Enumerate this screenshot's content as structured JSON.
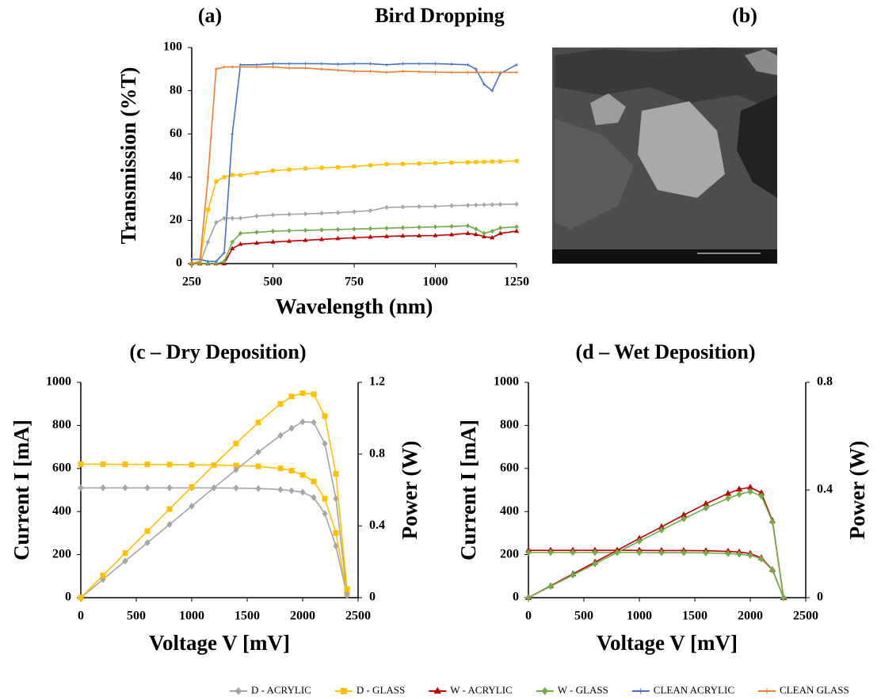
{
  "image_panel": {
    "label": "(b)"
  },
  "chart_data": [
    {
      "type": "line",
      "panel_label": "(a)",
      "title": "Bird Dropping",
      "x_label": "Wavelength (nm)",
      "y_label": "Transmission (%T)",
      "xlim": [
        250,
        1250
      ],
      "xticks": [
        250,
        500,
        750,
        1000,
        1250
      ],
      "ylim": [
        0,
        100
      ],
      "yticks": [
        0,
        20,
        40,
        60,
        80,
        100
      ],
      "grid": false,
      "legend": "bottom",
      "x": [
        250,
        275,
        300,
        325,
        350,
        375,
        400,
        450,
        500,
        550,
        600,
        650,
        700,
        750,
        800,
        850,
        900,
        950,
        1000,
        1050,
        1100,
        1125,
        1150,
        1175,
        1200,
        1250
      ],
      "series": [
        {
          "name": "D - ACRYLIC",
          "color": "#a5a5a5",
          "marker": "diamond",
          "values": [
            0,
            0,
            10,
            19,
            21,
            21,
            21,
            22,
            22.5,
            22.8,
            23,
            23.3,
            23.6,
            24,
            24.5,
            26,
            26.2,
            26.4,
            26.5,
            26.8,
            27,
            27.1,
            27.2,
            27.3,
            27.4,
            27.5
          ]
        },
        {
          "name": "D - GLASS",
          "color": "#ffc000",
          "marker": "square",
          "values": [
            0,
            0,
            25,
            38,
            40,
            41,
            41,
            42,
            43,
            43.5,
            44,
            44.3,
            44.6,
            45,
            45.5,
            46,
            46.1,
            46.3,
            46.5,
            46.7,
            46.9,
            47,
            47.1,
            47.2,
            47.3,
            47.5
          ]
        },
        {
          "name": "W - ACRYLIC",
          "color": "#c00000",
          "marker": "triangle",
          "values": [
            0,
            0,
            0,
            0,
            0,
            7,
            9,
            9.5,
            10,
            10.4,
            10.8,
            11.2,
            11.6,
            12,
            12.3,
            12.6,
            12.8,
            12.9,
            13,
            13.4,
            14,
            13.5,
            12.5,
            12,
            14,
            15
          ]
        },
        {
          "name": "W - GLASS",
          "color": "#70ad47",
          "marker": "diamond",
          "values": [
            0,
            0,
            0,
            0,
            1,
            10,
            14,
            14.5,
            15,
            15.2,
            15.4,
            15.6,
            15.8,
            16,
            16.2,
            16.4,
            16.6,
            16.8,
            17,
            17.2,
            17.5,
            16,
            14,
            15,
            16.5,
            17
          ]
        },
        {
          "name": "CLEAN ACRYLIC",
          "color": "#4472c4",
          "marker": "plus",
          "values": [
            2,
            2,
            1,
            1,
            5,
            60,
            92,
            92,
            92.5,
            92.5,
            92.5,
            92.5,
            92.3,
            92.5,
            92.5,
            92,
            92.5,
            92.5,
            92.5,
            92.3,
            92,
            90,
            83,
            80,
            88,
            92
          ]
        },
        {
          "name": "CLEAN GLASS",
          "color": "#ed7d31",
          "marker": "plus",
          "values": [
            0,
            1,
            40,
            90,
            91,
            91,
            91,
            91,
            91,
            90.5,
            90.5,
            90,
            89.5,
            89,
            89,
            88.5,
            89,
            88.8,
            88.6,
            88.5,
            88.5,
            88.5,
            88.5,
            88.5,
            88.5,
            88.5
          ]
        }
      ]
    },
    {
      "type": "line",
      "title": "(c – Dry Deposition)",
      "x_label": "Voltage V [mV]",
      "y_label": "Current I [mA]",
      "y2_label": "Power (W)",
      "xlim": [
        0,
        2500
      ],
      "xticks": [
        0,
        500,
        1000,
        1500,
        2000,
        2500
      ],
      "ylim": [
        0,
        1000
      ],
      "yticks": [
        0,
        200,
        400,
        600,
        800,
        1000
      ],
      "y2lim": [
        0,
        1.2
      ],
      "y2ticks": [
        0,
        0.4,
        0.8,
        1.2
      ],
      "grid": false,
      "x": [
        0,
        200,
        400,
        600,
        800,
        1000,
        1200,
        1400,
        1600,
        1800,
        1900,
        2000,
        2100,
        2200,
        2300,
        2400
      ],
      "series": [
        {
          "color": "#a5a5a5",
          "marker": "diamond",
          "values": [
            510,
            510,
            510,
            510,
            510,
            510,
            510,
            509,
            507,
            502,
            497,
            490,
            465,
            390,
            240,
            10
          ]
        },
        {
          "color": "#ffc000",
          "marker": "square",
          "values": [
            620,
            620,
            619,
            619,
            618,
            617,
            616,
            614,
            610,
            600,
            590,
            570,
            540,
            460,
            300,
            20
          ]
        },
        {
          "color": "#a5a5a5",
          "marker": "diamond",
          "axis": "y2",
          "values": [
            0,
            0.102,
            0.204,
            0.306,
            0.408,
            0.51,
            0.612,
            0.713,
            0.811,
            0.904,
            0.944,
            0.98,
            0.977,
            0.858,
            0.552,
            0.024
          ]
        },
        {
          "color": "#ffc000",
          "marker": "square",
          "axis": "y2",
          "values": [
            0,
            0.124,
            0.248,
            0.371,
            0.494,
            0.617,
            0.739,
            0.86,
            0.976,
            1.08,
            1.121,
            1.14,
            1.134,
            1.012,
            0.69,
            0.048
          ]
        }
      ]
    },
    {
      "type": "line",
      "title": "(d – Wet Deposition)",
      "x_label": "Voltage V [mV]",
      "y_label": "Current I [mA]",
      "y2_label": "Power (W)",
      "xlim": [
        0,
        2500
      ],
      "xticks": [
        0,
        500,
        1000,
        1500,
        2000,
        2500
      ],
      "ylim": [
        0,
        1000
      ],
      "yticks": [
        0,
        200,
        400,
        600,
        800,
        1000
      ],
      "y2lim": [
        0,
        0.8
      ],
      "y2ticks": [
        0,
        0.4,
        0.8
      ],
      "grid": false,
      "x": [
        0,
        200,
        400,
        600,
        800,
        1000,
        1200,
        1400,
        1600,
        1800,
        1900,
        2000,
        2100,
        2200,
        2300
      ],
      "series": [
        {
          "color": "#c00000",
          "marker": "triangle",
          "values": [
            220,
            220,
            220,
            220,
            220,
            220,
            219,
            219,
            218,
            215,
            212,
            205,
            185,
            130,
            0
          ]
        },
        {
          "color": "#70ad47",
          "marker": "diamond",
          "values": [
            210,
            210,
            210,
            210,
            210,
            210,
            209,
            209,
            208,
            205,
            202,
            197,
            180,
            128,
            0
          ]
        },
        {
          "color": "#c00000",
          "marker": "triangle",
          "axis": "y2",
          "values": [
            0,
            0.044,
            0.088,
            0.132,
            0.176,
            0.22,
            0.263,
            0.307,
            0.349,
            0.387,
            0.403,
            0.41,
            0.389,
            0.286,
            0
          ]
        },
        {
          "color": "#70ad47",
          "marker": "diamond",
          "axis": "y2",
          "values": [
            0,
            0.042,
            0.084,
            0.126,
            0.168,
            0.21,
            0.251,
            0.293,
            0.333,
            0.369,
            0.384,
            0.394,
            0.378,
            0.282,
            0
          ]
        }
      ]
    }
  ]
}
